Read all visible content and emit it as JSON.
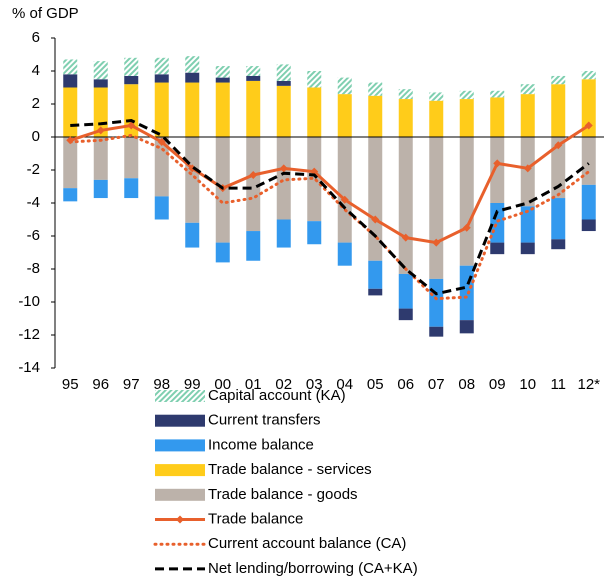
{
  "chart_data": {
    "type": "bar",
    "y_label": "% of GDP",
    "categories": [
      "95",
      "96",
      "97",
      "98",
      "99",
      "00",
      "01",
      "02",
      "03",
      "04",
      "05",
      "06",
      "07",
      "08",
      "09",
      "10",
      "11",
      "12*"
    ],
    "ylim": [
      -14,
      6
    ],
    "yticks": [
      -14,
      -12,
      -10,
      -8,
      -6,
      -4,
      -2,
      0,
      2,
      4,
      6
    ],
    "series": [
      {
        "name": "Capital account (KA)",
        "type": "bar",
        "pattern": "hatch",
        "color": "#7fcfb0",
        "values": [
          0.9,
          1.1,
          1.1,
          1.0,
          1.0,
          0.7,
          0.6,
          1.0,
          1.0,
          1.0,
          0.8,
          0.6,
          0.5,
          0.5,
          0.4,
          0.6,
          0.5,
          0.5
        ]
      },
      {
        "name": "Current transfers",
        "type": "bar",
        "color": "#2e3a6e",
        "values": [
          0.8,
          0.5,
          0.5,
          0.5,
          0.6,
          0.3,
          0.3,
          0.3,
          0,
          0,
          -0.4,
          -0.7,
          -0.6,
          -0.8,
          -0.7,
          -0.7,
          -0.6,
          -0.7
        ]
      },
      {
        "name": "Income balance",
        "type": "bar",
        "color": "#3399ee",
        "values": [
          -0.8,
          -1.1,
          -1.2,
          -1.4,
          -1.5,
          -1.2,
          -1.8,
          -1.7,
          -1.4,
          -1.4,
          -1.7,
          -2.1,
          -2.9,
          -3.3,
          -2.4,
          -2.2,
          -2.5,
          -2.1
        ]
      },
      {
        "name": "Trade balance - services",
        "type": "bar",
        "color": "#ffcc1a",
        "values": [
          3.0,
          3.0,
          3.2,
          3.3,
          3.3,
          3.3,
          3.4,
          3.1,
          3.0,
          2.6,
          2.5,
          2.3,
          2.2,
          2.3,
          2.4,
          2.6,
          3.2,
          3.5
        ]
      },
      {
        "name": "Trade balance - goods",
        "type": "bar",
        "color": "#bcb2aa",
        "values": [
          -3.1,
          -2.6,
          -2.5,
          -3.6,
          -5.2,
          -6.4,
          -5.7,
          -5.0,
          -5.1,
          -6.4,
          -7.5,
          -8.3,
          -8.6,
          -7.8,
          -4.0,
          -4.2,
          -3.7,
          -2.9
        ]
      },
      {
        "name": "Trade balance",
        "type": "line",
        "dash": "solid",
        "marker": true,
        "color": "#e8602c",
        "values": [
          -0.2,
          0.4,
          0.7,
          -0.3,
          -1.9,
          -3.1,
          -2.3,
          -1.9,
          -2.1,
          -3.8,
          -5.0,
          -6.1,
          -6.4,
          -5.5,
          -1.6,
          -1.9,
          -0.5,
          0.7
        ]
      },
      {
        "name": "Current account balance (CA)",
        "type": "line",
        "dash": "dotted",
        "marker": false,
        "color": "#e8602c",
        "values": [
          -0.3,
          -0.2,
          0.1,
          -0.7,
          -2.3,
          -4.0,
          -3.7,
          -2.6,
          -2.5,
          -4.4,
          -6.0,
          -8.0,
          -9.8,
          -9.7,
          -5.1,
          -4.5,
          -3.5,
          -2.1
        ]
      },
      {
        "name": "Net lending/borrowing (CA+KA)",
        "type": "line",
        "dash": "dashed",
        "marker": false,
        "color": "#000000",
        "values": [
          0.7,
          0.8,
          1.0,
          0.1,
          -1.8,
          -3.1,
          -3.1,
          -2.2,
          -2.3,
          -4.3,
          -6.0,
          -8.0,
          -9.5,
          -9.1,
          -4.5,
          -4.0,
          -3.0,
          -1.6
        ]
      }
    ]
  }
}
